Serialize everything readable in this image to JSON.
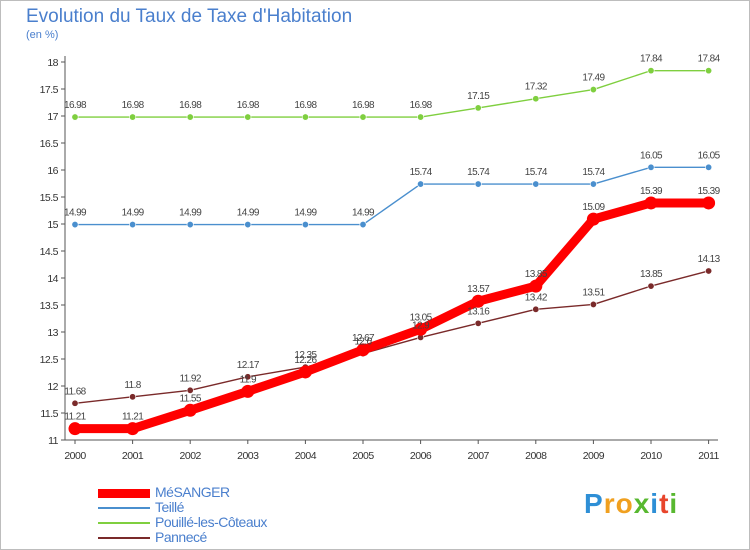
{
  "chart_data": {
    "type": "line",
    "title": "Evolution du Taux de Taxe d'Habitation",
    "subtitle": "(en %)",
    "x": [
      "2000",
      "2001",
      "2002",
      "2003",
      "2004",
      "2005",
      "2006",
      "2007",
      "2008",
      "2009",
      "2010",
      "2011"
    ],
    "ylim": [
      11,
      18
    ],
    "yticks": [
      "11",
      "11.5",
      "12",
      "12.5",
      "13",
      "13.5",
      "14",
      "14.5",
      "15",
      "15.5",
      "16",
      "16.5",
      "17",
      "17.5",
      "18"
    ],
    "grid": false,
    "legend_position": "bottom-left",
    "series": [
      {
        "name": "MéSANGER",
        "color": "#ff0000",
        "values": [
          11.21,
          11.21,
          11.55,
          11.9,
          12.26,
          12.67,
          13.05,
          13.57,
          13.85,
          15.09,
          15.39,
          15.39
        ],
        "labels": [
          "11.21",
          "11.21",
          "11.55",
          "11.9",
          "12.26",
          "12.67",
          "13.05",
          "13.57",
          "13.85",
          "15.09",
          "15.39",
          "15.39"
        ]
      },
      {
        "name": "Teillé",
        "color": "#4a8fce",
        "values": [
          14.99,
          14.99,
          14.99,
          14.99,
          14.99,
          14.99,
          15.74,
          15.74,
          15.74,
          15.74,
          16.05,
          16.05
        ],
        "labels": [
          "14.99",
          "14.99",
          "14.99",
          "14.99",
          "14.99",
          "14.99",
          "15.74",
          "15.74",
          "15.74",
          "15.74",
          "16.05",
          "16.05"
        ]
      },
      {
        "name": "Pouillé-les-Côteaux",
        "color": "#7fcf3f",
        "values": [
          16.98,
          16.98,
          16.98,
          16.98,
          16.98,
          16.98,
          16.98,
          17.15,
          17.32,
          17.49,
          17.84,
          17.84
        ],
        "labels": [
          "16.98",
          "16.98",
          "16.98",
          "16.98",
          "16.98",
          "16.98",
          "16.98",
          "17.15",
          "17.32",
          "17.49",
          "17.84",
          "17.84"
        ]
      },
      {
        "name": "Pannecé",
        "color": "#7a2a2a",
        "values": [
          11.68,
          11.8,
          11.92,
          12.17,
          12.35,
          12.6,
          12.9,
          13.16,
          13.42,
          13.51,
          13.85,
          14.13
        ],
        "labels": [
          "11.68",
          "11.8",
          "11.92",
          "12.17",
          "12.35",
          "12.6",
          "12.9",
          "13.16",
          "13.42",
          "13.51",
          "13.85",
          "14.13"
        ]
      }
    ]
  },
  "logo": {
    "letters": [
      "P",
      "r",
      "o",
      "x",
      "i",
      "t",
      "i"
    ],
    "colors": [
      "#2e8fd6",
      "#f0a020",
      "#f0a020",
      "#58b830",
      "#2e8fd6",
      "#e8452c",
      "#58b830"
    ]
  }
}
